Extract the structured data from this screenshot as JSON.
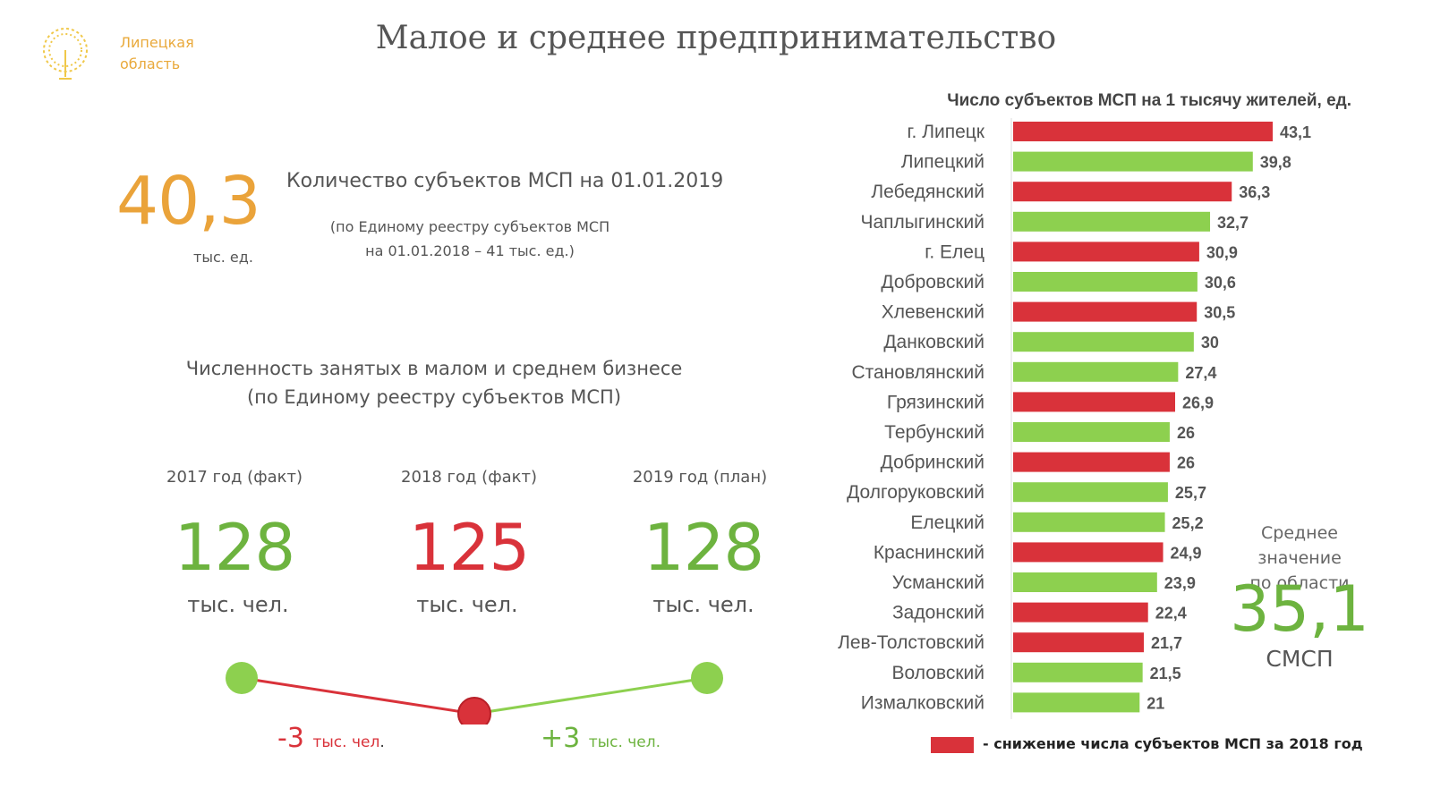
{
  "header": {
    "title": "Малое и среднее предпринимательство",
    "brand_text": "Липецкая\nобласть"
  },
  "count": {
    "value": "40,3",
    "unit": "тыс.  ед.",
    "title": "Количество субъектов МСП на 01.01.2019",
    "note": "(по Единому реестру субъектов МСП\nна 01.01.2018 – 41 тыс. ед.)"
  },
  "employment": {
    "title": "Численность занятых в малом и среднем бизнесе\n(по Единому реестру субъектов МСП)",
    "years": [
      {
        "label": "2017 год (факт)",
        "value": "128",
        "unit": "тыс. чел."
      },
      {
        "label": "2018 год (факт)",
        "value": "125",
        "unit": "тыс. чел."
      },
      {
        "label": "2019 год (план)",
        "value": "128",
        "unit": "тыс. чел."
      }
    ],
    "change_down": {
      "value": "-3",
      "unit": "тыс. чел",
      "tail": "."
    },
    "change_up": {
      "value": "+3",
      "unit": "тыс. чел."
    }
  },
  "average": {
    "label": "Среднее значение\nпо области",
    "value": "35,1",
    "unit": "СМСП"
  },
  "legend": {
    "text": "- снижение числа субъектов МСП за 2018 год"
  },
  "colors": {
    "red": "#d9323a",
    "green": "#8dd04f",
    "orange": "#eaa33a"
  },
  "chart_data": {
    "type": "bar",
    "orientation": "horizontal",
    "title": "Число субъектов МСП на 1 тысячу жителей, ед.",
    "categories": [
      "г. Липецк",
      "Липецкий",
      "Лебедянский",
      "Чаплыгинский",
      "г. Елец",
      "Добровский",
      "Хлевенский",
      "Данковский",
      "Становлянский",
      "Грязинский",
      "Тербунский",
      "Добринский",
      "Долгоруковский",
      "Елецкий",
      "Краснинский",
      "Усманский",
      "Задонский",
      "Лев-Толстовский",
      "Воловский",
      "Измалковский"
    ],
    "values": [
      43.1,
      39.8,
      36.3,
      32.7,
      30.9,
      30.6,
      30.5,
      30,
      27.4,
      26.9,
      26,
      26,
      25.7,
      25.2,
      24.9,
      23.9,
      22.4,
      21.7,
      21.5,
      21
    ],
    "value_labels": [
      "43,1",
      "39,8",
      "36,3",
      "32,7",
      "30,9",
      "30,6",
      "30,5",
      "30",
      "27,4",
      "26,9",
      "26",
      "26",
      "25,7",
      "25,2",
      "24,9",
      "23,9",
      "22,4",
      "21,7",
      "21,5",
      "21"
    ],
    "decline_2018": [
      true,
      false,
      true,
      false,
      true,
      false,
      true,
      false,
      false,
      true,
      false,
      true,
      false,
      false,
      true,
      false,
      true,
      true,
      false,
      false
    ]
  }
}
